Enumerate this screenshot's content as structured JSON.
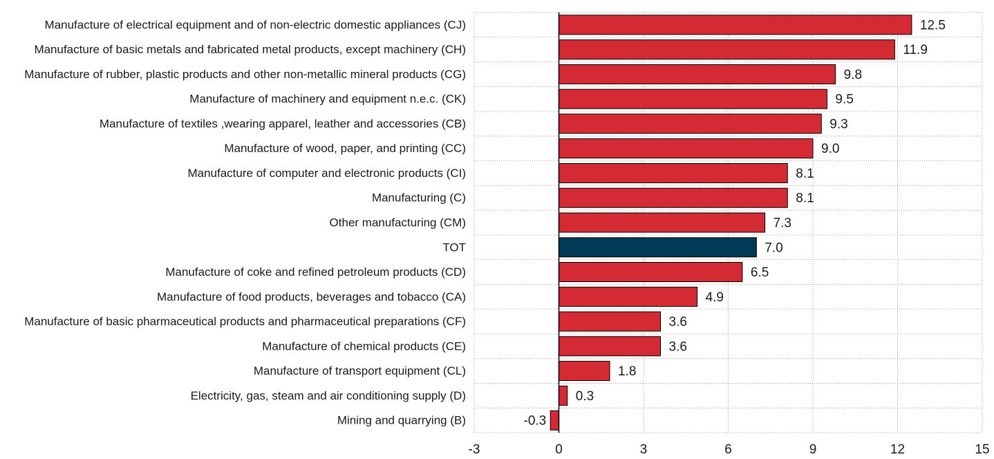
{
  "chart_data": {
    "type": "bar",
    "orientation": "horizontal",
    "categories": [
      "Manufacture of electrical equipment and of non-electric domestic appliances (CJ)",
      "Manufacture of basic metals and fabricated metal products, except machinery  (CH)",
      "Manufacture of rubber,  plastic products and other non-metallic mineral products (CG)",
      "Manufacture of machinery and equipment n.e.c. (CK)",
      "Manufacture of textiles ,wearing apparel, leather and accessories (CB)",
      "Manufacture of wood, paper, and printing (CC)",
      "Manufacture of computer and electronic products (CI)",
      "Manufacturing (C)",
      "Other manufacturing (CM)",
      "TOT",
      "Manufacture of coke and refined petroleum products (CD)",
      "Manufacture of food products, beverages and tobacco (CA)",
      "Manufacture of basic pharmaceutical products and pharmaceutical preparations (CF)",
      "Manufacture of chemical products (CE)",
      "Manufacture of transport equipment (CL)",
      "Electricity, gas, steam  and air conditioning supply (D)",
      "Mining and quarrying (B)"
    ],
    "values": [
      12.5,
      11.9,
      9.8,
      9.5,
      9.3,
      9.0,
      8.1,
      8.1,
      7.3,
      7.0,
      6.5,
      4.9,
      3.6,
      3.6,
      1.8,
      0.3,
      -0.3
    ],
    "value_labels": [
      "12.5",
      "11.9",
      "9.8",
      "9.5",
      "9.3",
      "9.0",
      "8.1",
      "8.1",
      "7.3",
      "7.0",
      "6.5",
      "4.9",
      "3.6",
      "3.6",
      "1.8",
      "0.3",
      "-0.3"
    ],
    "highlight_index": 9,
    "x_ticks": [
      -3,
      0,
      3,
      6,
      9,
      12,
      15
    ],
    "xlim": [
      -3,
      15
    ],
    "grid": true,
    "colors": {
      "bar": "#d42a33",
      "highlight": "#003a57",
      "grid": "#a0a0a0",
      "axis": "#000000"
    }
  }
}
